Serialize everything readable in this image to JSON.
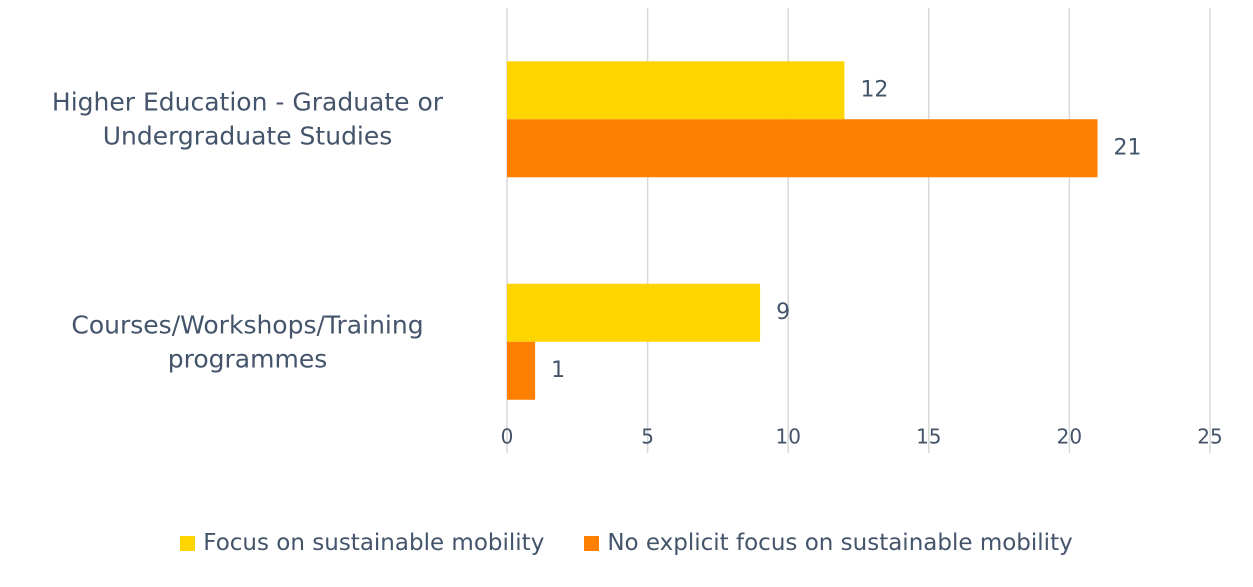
{
  "chart_data": {
    "type": "barh",
    "categories": [
      "Higher Education - Graduate or Undergraduate Studies",
      "Courses/Workshops/Training programmes"
    ],
    "series": [
      {
        "name": "Focus on sustainable mobility",
        "color": "#FFD500",
        "values": [
          12,
          9
        ]
      },
      {
        "name": "No explicit focus on sustainable mobility",
        "color": "#FF7F00",
        "values": [
          21,
          1
        ]
      }
    ],
    "xlim": [
      0,
      25
    ],
    "xticks": [
      0,
      5,
      10,
      15,
      20,
      25
    ],
    "grid": true,
    "legend": "bottom"
  }
}
